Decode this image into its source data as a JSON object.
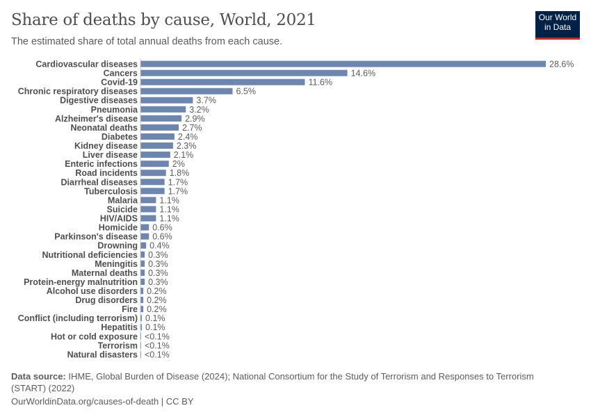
{
  "header": {
    "title": "Share of deaths by cause, World, 2021",
    "subtitle": "The estimated share of total annual deaths from each cause.",
    "logo_line1": "Our World",
    "logo_line2": "in Data"
  },
  "footer": {
    "source_label": "Data source:",
    "source_text": " IHME, Global Burden of Disease (2024); National Consortium for the Study of Terrorism and Responses to Terrorism (START) (2022)",
    "url": "OurWorldinData.org/causes-of-death | CC BY"
  },
  "colors": {
    "bar": "#6d86b0",
    "axis": "#c8c8c8",
    "label": "#4e4e4e",
    "value": "#5b5b5b",
    "logo_bg": "#002147",
    "logo_accent": "#ce261e"
  },
  "chart_data": {
    "type": "bar",
    "orientation": "horizontal",
    "title": "Share of deaths by cause, World, 2021",
    "categories": [
      "Cardiovascular diseases",
      "Cancers",
      "Covid-19",
      "Chronic respiratory diseases",
      "Digestive diseases",
      "Pneumonia",
      "Alzheimer's disease",
      "Neonatal deaths",
      "Diabetes",
      "Kidney disease",
      "Liver disease",
      "Enteric infections",
      "Road incidents",
      "Diarrheal diseases",
      "Tuberculosis",
      "Malaria",
      "Suicide",
      "HIV/AIDS",
      "Homicide",
      "Parkinson's disease",
      "Drowning",
      "Nutritional deficiencies",
      "Meningitis",
      "Maternal deaths",
      "Protein-energy malnutrition",
      "Alcohol use disorders",
      "Drug disorders",
      "Fire",
      "Conflict (including terrorism)",
      "Hepatitis",
      "Hot or cold exposure",
      "Terrorism",
      "Natural disasters"
    ],
    "values": [
      28.6,
      14.6,
      11.6,
      6.5,
      3.7,
      3.2,
      2.9,
      2.7,
      2.4,
      2.3,
      2.1,
      2,
      1.8,
      1.7,
      1.7,
      1.1,
      1.1,
      1.1,
      0.6,
      0.6,
      0.4,
      0.3,
      0.3,
      0.3,
      0.3,
      0.2,
      0.2,
      0.2,
      0.1,
      0.1,
      0.05,
      0.03,
      0.03
    ],
    "value_labels": [
      "28.6%",
      "14.6%",
      "11.6%",
      "6.5%",
      "3.7%",
      "3.2%",
      "2.9%",
      "2.7%",
      "2.4%",
      "2.3%",
      "2.1%",
      "2%",
      "1.8%",
      "1.7%",
      "1.7%",
      "1.1%",
      "1.1%",
      "1.1%",
      "0.6%",
      "0.6%",
      "0.4%",
      "0.3%",
      "0.3%",
      "0.3%",
      "0.3%",
      "0.2%",
      "0.2%",
      "0.2%",
      "0.1%",
      "0.1%",
      "<0.1%",
      "<0.1%",
      "<0.1%"
    ],
    "unit": "%",
    "xlim": [
      0,
      28.6
    ],
    "grid": false,
    "legend": "none"
  }
}
